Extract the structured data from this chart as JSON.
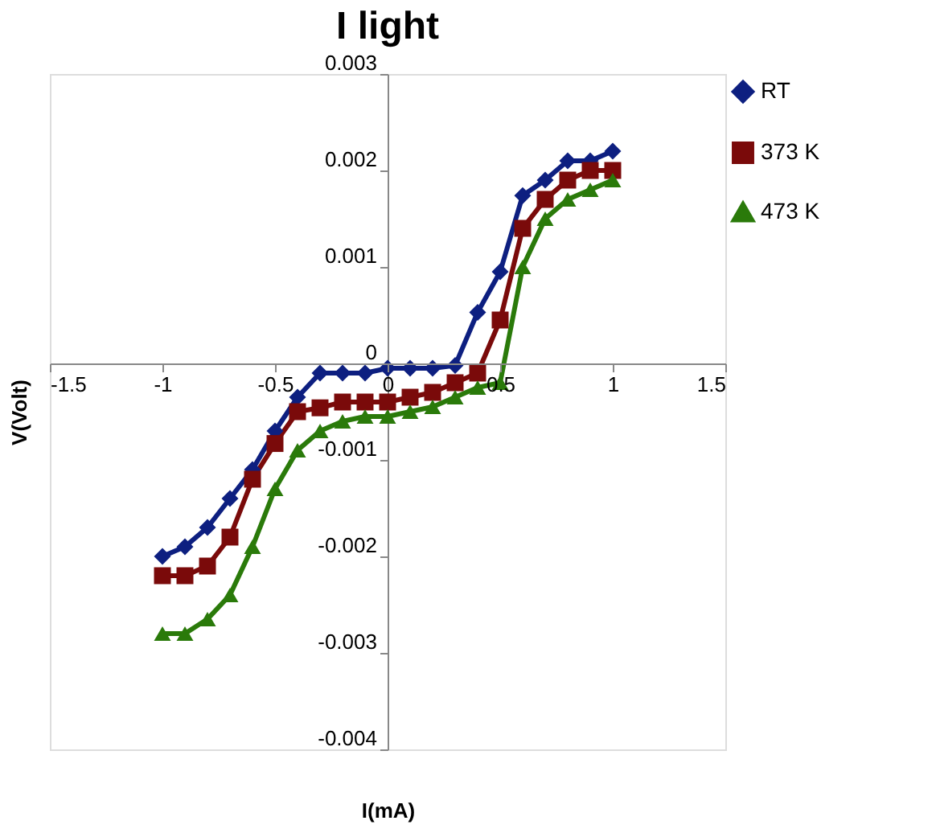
{
  "chart_data": {
    "type": "line",
    "title": "I light",
    "xlabel": "I(mA)",
    "ylabel": "V(Volt)",
    "x": [
      -1,
      -0.9,
      -0.8,
      -0.7,
      -0.6,
      -0.5,
      -0.4,
      -0.3,
      -0.2,
      -0.1,
      0,
      0.1,
      0.2,
      0.3,
      0.4,
      0.5,
      0.6,
      0.7,
      0.8,
      0.9,
      1
    ],
    "series": [
      {
        "name": "RT",
        "color": "#0d1f80",
        "marker": "diamond",
        "values": [
          -0.002,
          -0.0019,
          -0.0017,
          -0.0014,
          -0.0011,
          -0.0007,
          -0.00035,
          -0.0001,
          -0.0001,
          -0.0001,
          -5e-05,
          -5e-05,
          -5e-05,
          -2e-05,
          0.00053,
          0.00095,
          0.00174,
          0.0019,
          0.0021,
          0.0021,
          0.0022
        ]
      },
      {
        "name": "373 K",
        "color": "#7a0a0a",
        "marker": "square",
        "values": [
          -0.0022,
          -0.0022,
          -0.0021,
          -0.0018,
          -0.0012,
          -0.00083,
          -0.0005,
          -0.00046,
          -0.0004,
          -0.0004,
          -0.0004,
          -0.00035,
          -0.0003,
          -0.0002,
          -0.0001,
          0.00045,
          0.0014,
          0.0017,
          0.0019,
          0.002,
          0.002
        ]
      },
      {
        "name": "473 K",
        "color": "#2a7a0a",
        "marker": "triangle",
        "values": [
          -0.0028,
          -0.0028,
          -0.00265,
          -0.0024,
          -0.0019,
          -0.0013,
          -0.0009,
          -0.0007,
          -0.0006,
          -0.00055,
          -0.00055,
          -0.0005,
          -0.00045,
          -0.00035,
          -0.00025,
          -0.0002,
          0.001,
          0.0015,
          0.0017,
          0.0018,
          0.0019
        ]
      }
    ],
    "xlim": [
      -1.5,
      1.5
    ],
    "xticks": [
      -1.5,
      -1,
      -0.5,
      0,
      0.5,
      1,
      1.5
    ],
    "ylim": [
      -0.004,
      0.003
    ],
    "yticks": [
      -0.004,
      -0.003,
      -0.002,
      -0.001,
      0,
      0.001,
      0.002,
      0.003
    ],
    "grid": false,
    "legend": "top right",
    "line_style": "solid"
  }
}
